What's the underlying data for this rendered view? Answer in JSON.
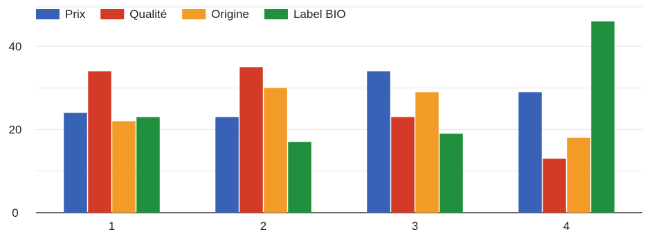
{
  "chart_data": {
    "type": "bar",
    "title": "",
    "xlabel": "",
    "ylabel": "",
    "categories": [
      "1",
      "2",
      "3",
      "4"
    ],
    "series": [
      {
        "name": "Prix",
        "color": "#3762b5",
        "values": [
          24,
          23,
          34,
          29
        ]
      },
      {
        "name": "Qualité",
        "color": "#d33b27",
        "values": [
          34,
          35,
          23,
          13
        ]
      },
      {
        "name": "Origine",
        "color": "#f29b26",
        "values": [
          22,
          30,
          29,
          18
        ]
      },
      {
        "name": "Label BIO",
        "color": "#21903e",
        "values": [
          23,
          17,
          19,
          46
        ]
      }
    ],
    "ylim": [
      0,
      48
    ],
    "yticks": [
      0,
      20,
      40
    ],
    "yticks_labels": [
      "0",
      "20",
      "40"
    ],
    "minor_gridlines": [
      10,
      30
    ],
    "grid": true,
    "legend_position": "top-left"
  }
}
